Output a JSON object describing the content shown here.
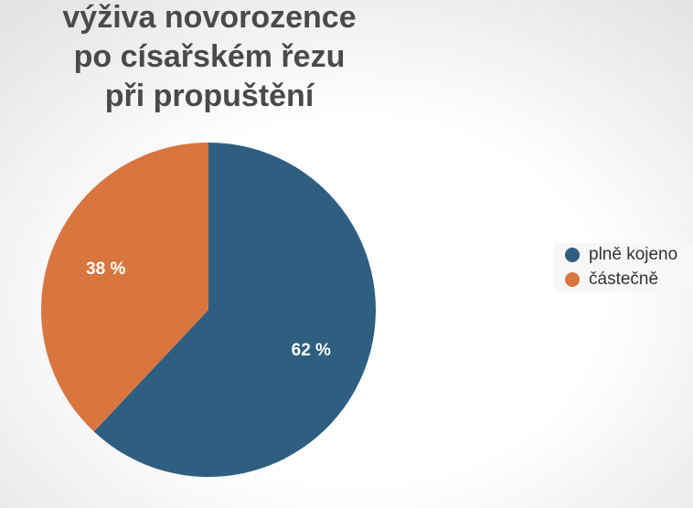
{
  "chart_data": {
    "type": "pie",
    "title": [
      "výživa novorozence",
      "po císařském řezu",
      "při propuštění"
    ],
    "slices": [
      {
        "label": "plně kojeno",
        "value": 62,
        "value_label": "62 %",
        "color": "#2e5f80"
      },
      {
        "label": "částečně",
        "value": 38,
        "value_label": "38 %",
        "color": "#d97640"
      }
    ],
    "legend_position": "right"
  }
}
